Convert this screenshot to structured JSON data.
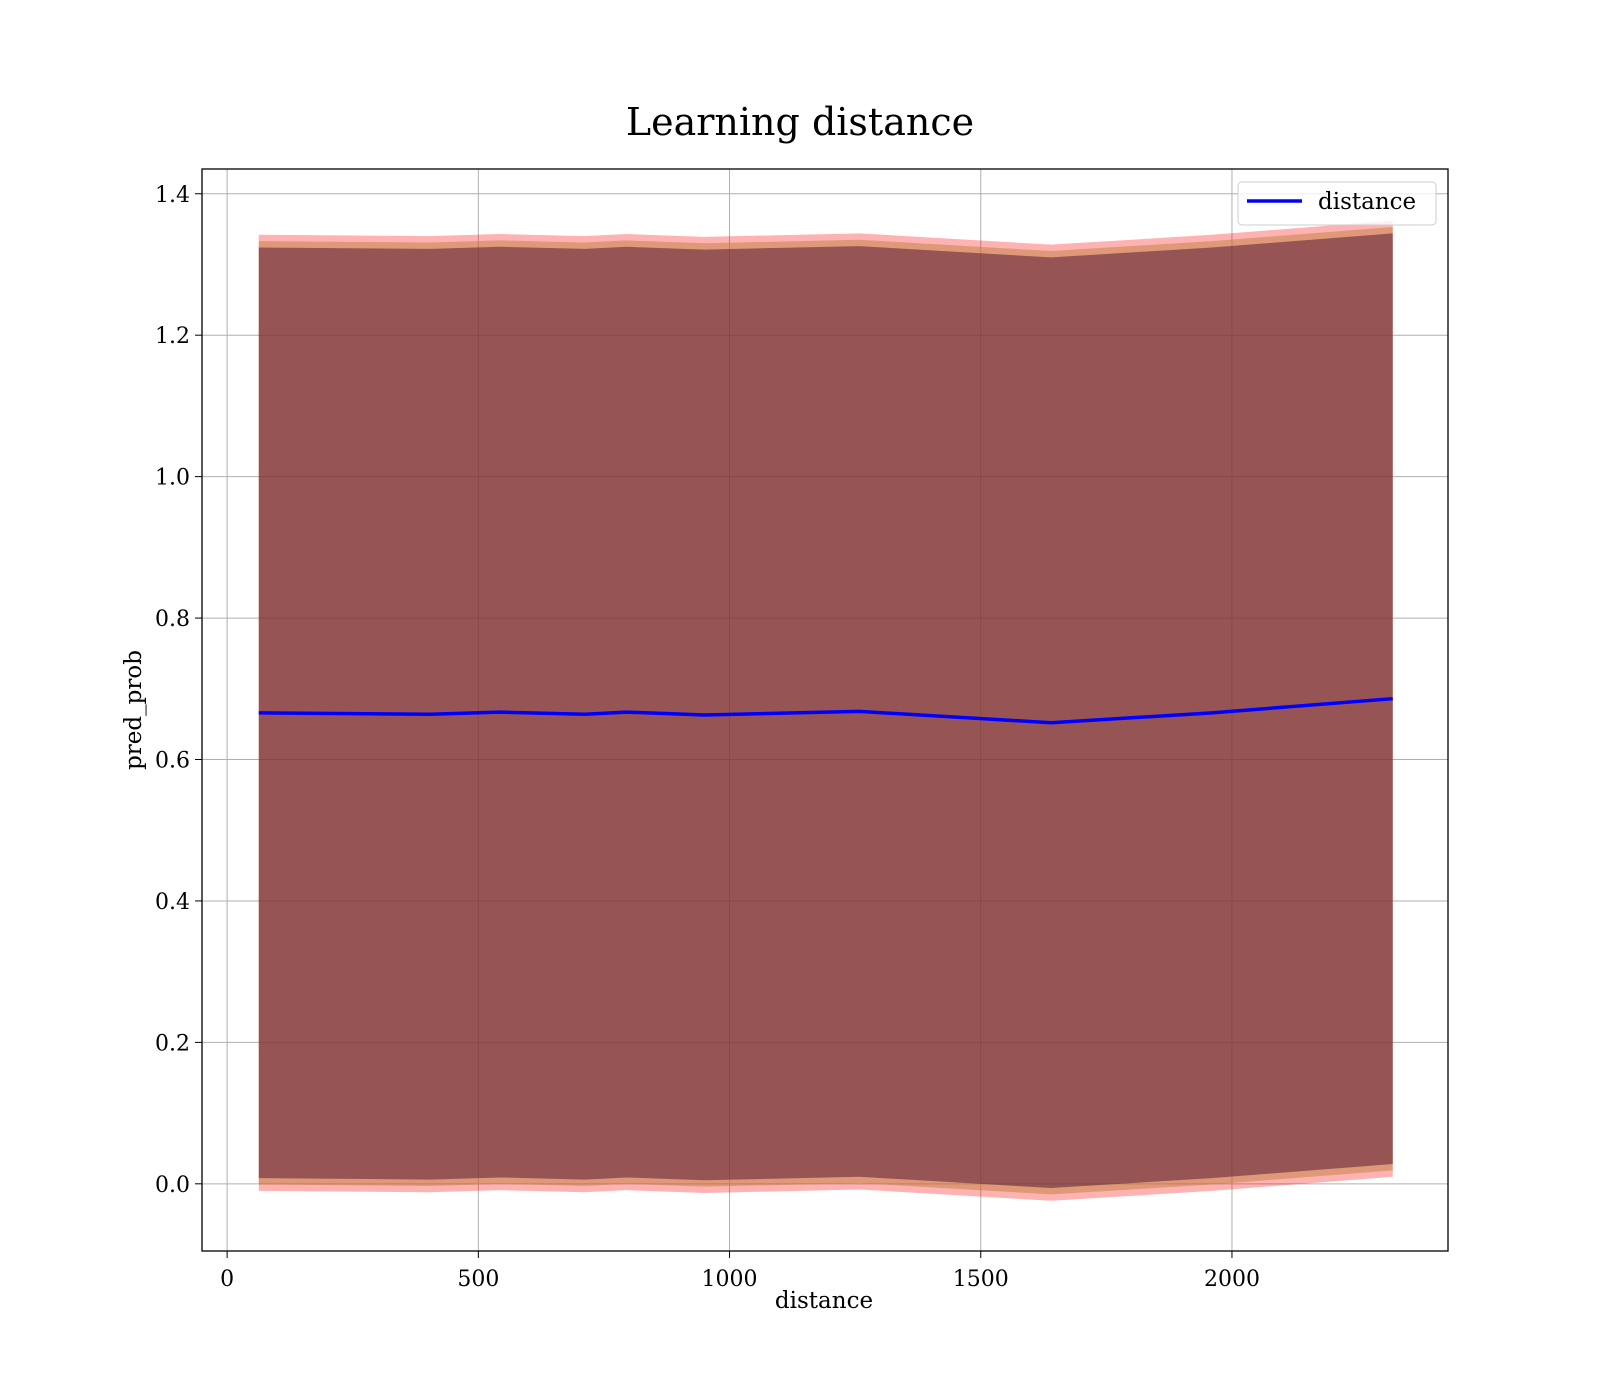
{
  "chart_data": {
    "type": "line",
    "title": "Learning distance",
    "xlabel": "distance",
    "ylabel": "pred_prob",
    "xlim": [
      -50,
      2430
    ],
    "ylim": [
      -0.095,
      1.435
    ],
    "xticks": [
      0,
      500,
      1000,
      1500,
      2000
    ],
    "yticks": [
      0.0,
      0.2,
      0.4,
      0.6,
      0.8,
      1.0,
      1.2,
      1.4
    ],
    "ytick_labels": [
      "0.0",
      "0.2",
      "0.4",
      "0.6",
      "0.8",
      "1.0",
      "1.2",
      "1.4"
    ],
    "grid": true,
    "legend_position": "top-right",
    "x": [
      63,
      405,
      543,
      712,
      795,
      950,
      1258,
      1640,
      1960,
      2320
    ],
    "series": [
      {
        "name": "distance",
        "color": "#0000ff",
        "values": [
          0.666,
          0.664,
          0.667,
          0.664,
          0.667,
          0.663,
          0.668,
          0.652,
          0.666,
          0.686
        ]
      }
    ],
    "bands": [
      {
        "color": "#ff0000",
        "opacity": 0.3,
        "upper": [
          1.342,
          1.34,
          1.343,
          1.34,
          1.343,
          1.339,
          1.344,
          1.328,
          1.342,
          1.362
        ],
        "lower": [
          -0.01,
          -0.012,
          -0.009,
          -0.012,
          -0.009,
          -0.013,
          -0.008,
          -0.024,
          -0.01,
          0.01
        ]
      },
      {
        "color": "#c08040",
        "opacity": 0.5,
        "upper": [
          1.333,
          1.331,
          1.334,
          1.331,
          1.334,
          1.33,
          1.335,
          1.319,
          1.333,
          1.353
        ],
        "lower": [
          -0.001,
          -0.003,
          0.0,
          -0.003,
          0.0,
          -0.004,
          0.001,
          -0.015,
          -0.001,
          0.019
        ]
      },
      {
        "color": "#5a1e36",
        "opacity": 0.55,
        "upper": [
          1.324,
          1.322,
          1.325,
          1.322,
          1.325,
          1.321,
          1.326,
          1.31,
          1.324,
          1.344
        ],
        "lower": [
          0.008,
          0.006,
          0.009,
          0.006,
          0.009,
          0.005,
          0.01,
          -0.006,
          0.008,
          0.028
        ]
      }
    ]
  }
}
